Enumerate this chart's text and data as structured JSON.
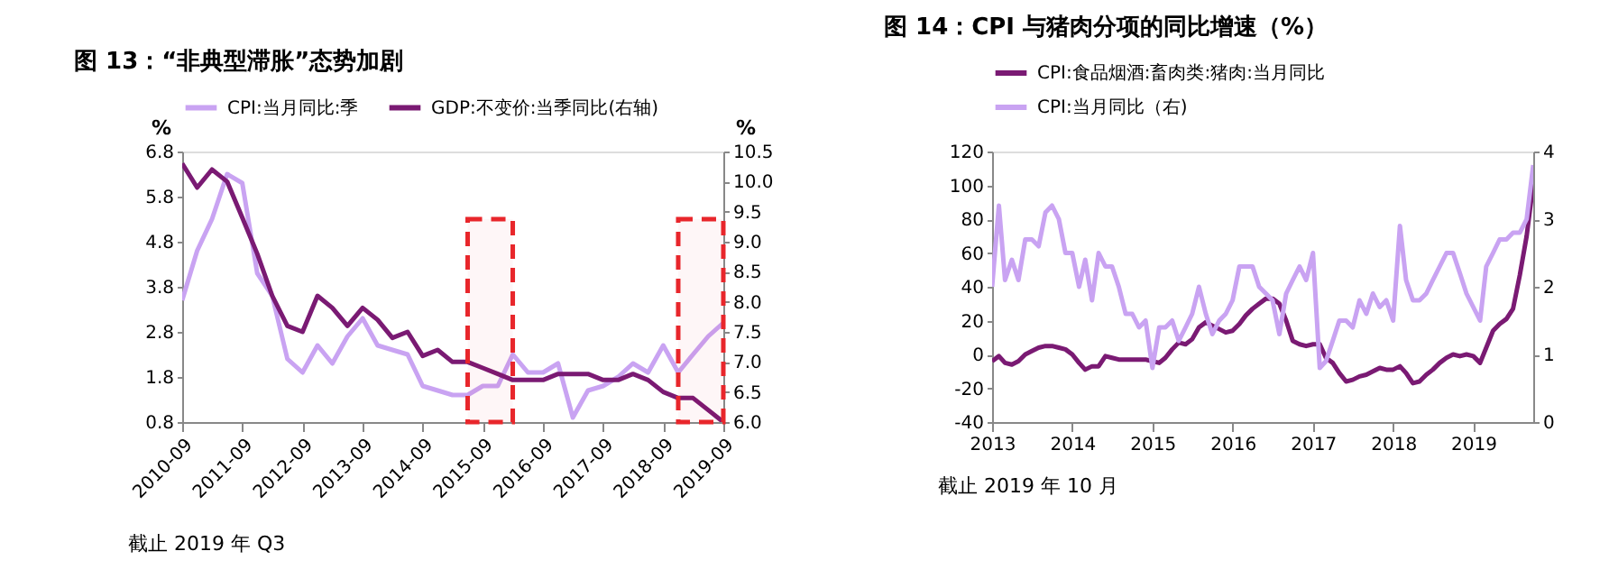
{
  "chart_data": [
    {
      "type": "line",
      "title": "图 13：“非典型滞胀”态势加剧",
      "ylabel": "%",
      "y2label": "%",
      "x": [
        "2010-09",
        "2010-12",
        "2011-03",
        "2011-06",
        "2011-09",
        "2011-12",
        "2012-03",
        "2012-06",
        "2012-09",
        "2012-12",
        "2013-03",
        "2013-06",
        "2013-09",
        "2013-12",
        "2014-03",
        "2014-06",
        "2014-09",
        "2014-12",
        "2015-03",
        "2015-06",
        "2015-09",
        "2015-12",
        "2016-03",
        "2016-06",
        "2016-09",
        "2016-12",
        "2017-03",
        "2017-06",
        "2017-09",
        "2017-12",
        "2018-03",
        "2018-06",
        "2018-09",
        "2018-12",
        "2019-03",
        "2019-06",
        "2019-09"
      ],
      "series": [
        {
          "name": "CPI:当月同比:季",
          "color": "#c9a3f2",
          "values": [
            3.5,
            4.6,
            5.3,
            6.3,
            6.1,
            4.1,
            3.6,
            2.2,
            1.9,
            2.5,
            2.1,
            2.7,
            3.1,
            2.5,
            2.4,
            2.3,
            1.6,
            1.5,
            1.4,
            1.4,
            1.6,
            1.6,
            2.3,
            1.9,
            1.9,
            2.1,
            0.9,
            1.5,
            1.6,
            1.8,
            2.1,
            1.9,
            2.5,
            1.9,
            2.3,
            2.7,
            3.0
          ]
        },
        {
          "name": "GDP:不变价:当季同比(右轴)",
          "color": "#7a1a73",
          "axis": "y2",
          "values": [
            10.3,
            9.9,
            10.2,
            10.0,
            9.4,
            8.8,
            8.1,
            7.6,
            7.5,
            8.1,
            7.9,
            7.6,
            7.9,
            7.7,
            7.4,
            7.5,
            7.1,
            7.2,
            7.0,
            7.0,
            6.9,
            6.8,
            6.7,
            6.7,
            6.7,
            6.8,
            6.8,
            6.8,
            6.7,
            6.7,
            6.8,
            6.7,
            6.5,
            6.4,
            6.4,
            6.2,
            6.0
          ]
        }
      ],
      "xlim": [
        "2010-09",
        "2019-09"
      ],
      "xticks": [
        "2010-09",
        "2011-09",
        "2012-09",
        "2013-09",
        "2014-09",
        "2015-09",
        "2016-09",
        "2017-09",
        "2018-09",
        "2019-09"
      ],
      "ylim": [
        0.8,
        6.8
      ],
      "yticks": [
        0.8,
        1.8,
        2.8,
        3.8,
        4.8,
        5.8,
        6.8
      ],
      "y2lim": [
        6.0,
        10.5
      ],
      "y2ticks": [
        {
          "value": 6,
          "label": "6.0"
        },
        6.5,
        {
          "value": 7,
          "label": "7.0"
        },
        7.5,
        {
          "value": 8,
          "label": "8.0"
        },
        8.5,
        {
          "value": 9,
          "label": "9.0"
        },
        9.5,
        {
          "value": 10,
          "label": "10.0"
        },
        10.5
      ],
      "bands": [
        {
          "axis": "x",
          "from": "2015-06",
          "to": "2016-03",
          "color": "#e8262b"
        },
        {
          "axis": "x",
          "from": "2018-12",
          "to": "2019-09",
          "color": "#e8262b"
        }
      ],
      "grid": false,
      "legend": "top",
      "annotations": [
        "截止 2019 年 Q3"
      ]
    },
    {
      "type": "line",
      "title": "图 14：CPI 与猪肉分项的同比增速（%）",
      "x": [
        "2013-01",
        "2013-02",
        "2013-03",
        "2013-04",
        "2013-05",
        "2013-06",
        "2013-07",
        "2013-08",
        "2013-09",
        "2013-10",
        "2013-11",
        "2013-12",
        "2014-01",
        "2014-02",
        "2014-03",
        "2014-04",
        "2014-05",
        "2014-06",
        "2014-07",
        "2014-08",
        "2014-09",
        "2014-10",
        "2014-11",
        "2014-12",
        "2015-01",
        "2015-02",
        "2015-03",
        "2015-04",
        "2015-05",
        "2015-06",
        "2015-07",
        "2015-08",
        "2015-09",
        "2015-10",
        "2015-11",
        "2015-12",
        "2016-01",
        "2016-02",
        "2016-03",
        "2016-04",
        "2016-05",
        "2016-06",
        "2016-07",
        "2016-08",
        "2016-09",
        "2016-10",
        "2016-11",
        "2016-12",
        "2017-01",
        "2017-02",
        "2017-03",
        "2017-04",
        "2017-05",
        "2017-06",
        "2017-07",
        "2017-08",
        "2017-09",
        "2017-10",
        "2017-11",
        "2017-12",
        "2018-01",
        "2018-02",
        "2018-03",
        "2018-04",
        "2018-05",
        "2018-06",
        "2018-07",
        "2018-08",
        "2018-09",
        "2018-10",
        "2018-11",
        "2018-12",
        "2019-01",
        "2019-02",
        "2019-03",
        "2019-04",
        "2019-05",
        "2019-06",
        "2019-07",
        "2019-08",
        "2019-09",
        "2019-10"
      ],
      "series": [
        {
          "name": "CPI:食品烟酒:畜肉类:猪肉:当月同比",
          "color": "#7a1a73",
          "values": [
            -4,
            -1,
            -5,
            -6,
            -4,
            0,
            2,
            4,
            5,
            5,
            4,
            3,
            0,
            -5,
            -9,
            -7,
            -7,
            -1,
            -2,
            -3,
            -3,
            -3,
            -3,
            -3,
            -4,
            -5,
            -2,
            3,
            7,
            6,
            9,
            16,
            19,
            17,
            15,
            13,
            14,
            18,
            23,
            27,
            30,
            33,
            33,
            30,
            20,
            8,
            6,
            5,
            6,
            6,
            -2,
            -5,
            -11,
            -16,
            -15,
            -13,
            -12,
            -10,
            -8,
            -9,
            -9,
            -7,
            -11,
            -17,
            -16,
            -12,
            -9,
            -5,
            -2,
            0,
            -1,
            0,
            -1,
            -5,
            4,
            14,
            18,
            21,
            27,
            47,
            70,
            101
          ]
        },
        {
          "name": "CPI:当月同比（右)",
          "color": "#c9a3f2",
          "axis": "y2",
          "values": [
            2.0,
            3.2,
            2.1,
            2.4,
            2.1,
            2.7,
            2.7,
            2.6,
            3.1,
            3.2,
            3.0,
            2.5,
            2.5,
            2.0,
            2.4,
            1.8,
            2.5,
            2.3,
            2.3,
            2.0,
            1.6,
            1.6,
            1.4,
            1.5,
            0.8,
            1.4,
            1.4,
            1.5,
            1.2,
            1.4,
            1.6,
            2.0,
            1.6,
            1.3,
            1.5,
            1.6,
            1.8,
            2.3,
            2.3,
            2.3,
            2.0,
            1.9,
            1.8,
            1.3,
            1.9,
            2.1,
            2.3,
            2.1,
            2.5,
            0.8,
            0.9,
            1.2,
            1.5,
            1.5,
            1.4,
            1.8,
            1.6,
            1.9,
            1.7,
            1.8,
            1.5,
            2.9,
            2.1,
            1.8,
            1.8,
            1.9,
            2.1,
            2.3,
            2.5,
            2.5,
            2.2,
            1.9,
            1.7,
            1.5,
            2.3,
            2.5,
            2.7,
            2.7,
            2.8,
            2.8,
            3.0,
            3.8
          ]
        }
      ],
      "xlim": [
        "2013-01",
        "2019-10"
      ],
      "xticks": [
        {
          "value": "2013-01",
          "label": "2013"
        },
        {
          "value": "2014-01",
          "label": "2014"
        },
        {
          "value": "2015-01",
          "label": "2015"
        },
        {
          "value": "2016-01",
          "label": "2016"
        },
        {
          "value": "2017-01",
          "label": "2017"
        },
        {
          "value": "2018-01",
          "label": "2018"
        },
        {
          "value": "2019-01",
          "label": "2019"
        }
      ],
      "ylim": [
        -40,
        120
      ],
      "yticks": [
        -40,
        -20,
        0,
        20,
        40,
        60,
        80,
        100,
        120
      ],
      "y2lim": [
        0,
        4
      ],
      "y2ticks": [
        0,
        1,
        2,
        3,
        4
      ],
      "grid": false,
      "legend": "top",
      "annotations": [
        "截止 2019 年 10 月"
      ]
    }
  ]
}
